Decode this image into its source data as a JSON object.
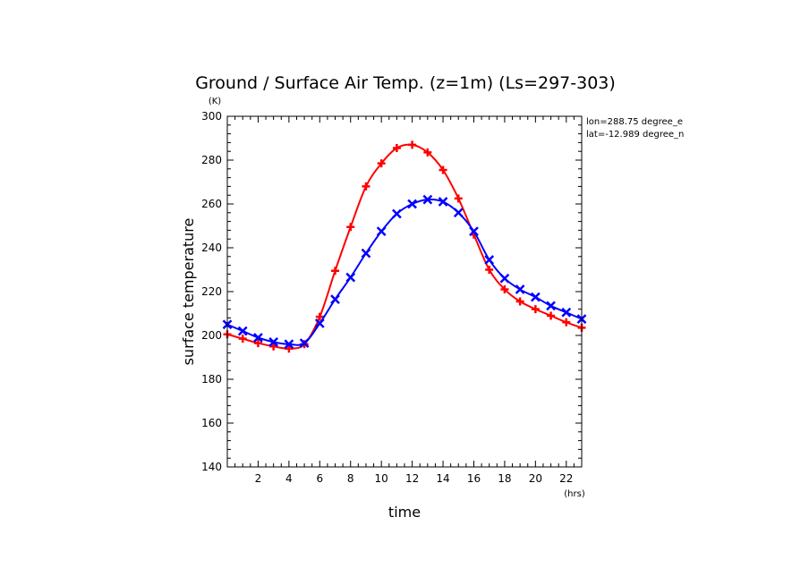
{
  "chart_data": {
    "type": "line",
    "title": "Ground / Surface Air Temp. (z=1m) (Ls=297-303)",
    "xlabel": "time",
    "ylabel": "surface temperature",
    "x_unit": "(hrs)",
    "y_unit": "(K)",
    "xlim": [
      0,
      23
    ],
    "ylim": [
      140,
      300
    ],
    "x_ticks": [
      2,
      4,
      6,
      8,
      10,
      12,
      14,
      16,
      18,
      20,
      22
    ],
    "y_ticks": [
      140,
      160,
      180,
      200,
      220,
      240,
      260,
      280,
      300
    ],
    "annotations": [
      "lon=288.75 degree_e",
      "lat=-12.989 degree_n"
    ],
    "x": [
      0,
      1,
      2,
      3,
      4,
      5,
      6,
      7,
      8,
      9,
      10,
      11,
      12,
      13,
      14,
      15,
      16,
      17,
      18,
      19,
      20,
      21,
      22,
      23
    ],
    "series": [
      {
        "color": "#ff0000",
        "marker": "plus",
        "values": [
          200.5,
          198.5,
          196.5,
          195,
          194,
          196,
          208.5,
          229.5,
          249.5,
          268,
          278.5,
          285.5,
          287,
          283.5,
          275.5,
          262.5,
          246,
          230,
          221,
          215.5,
          212,
          209,
          206,
          203.5
        ]
      },
      {
        "color": "#0000ff",
        "marker": "x",
        "values": [
          205,
          202,
          199,
          197,
          196,
          196.5,
          205.5,
          216.5,
          226.5,
          237.5,
          247.5,
          255.5,
          260,
          262,
          261,
          256,
          247.5,
          234.5,
          226,
          221,
          217.5,
          213.5,
          210.5,
          207.5
        ]
      }
    ]
  }
}
